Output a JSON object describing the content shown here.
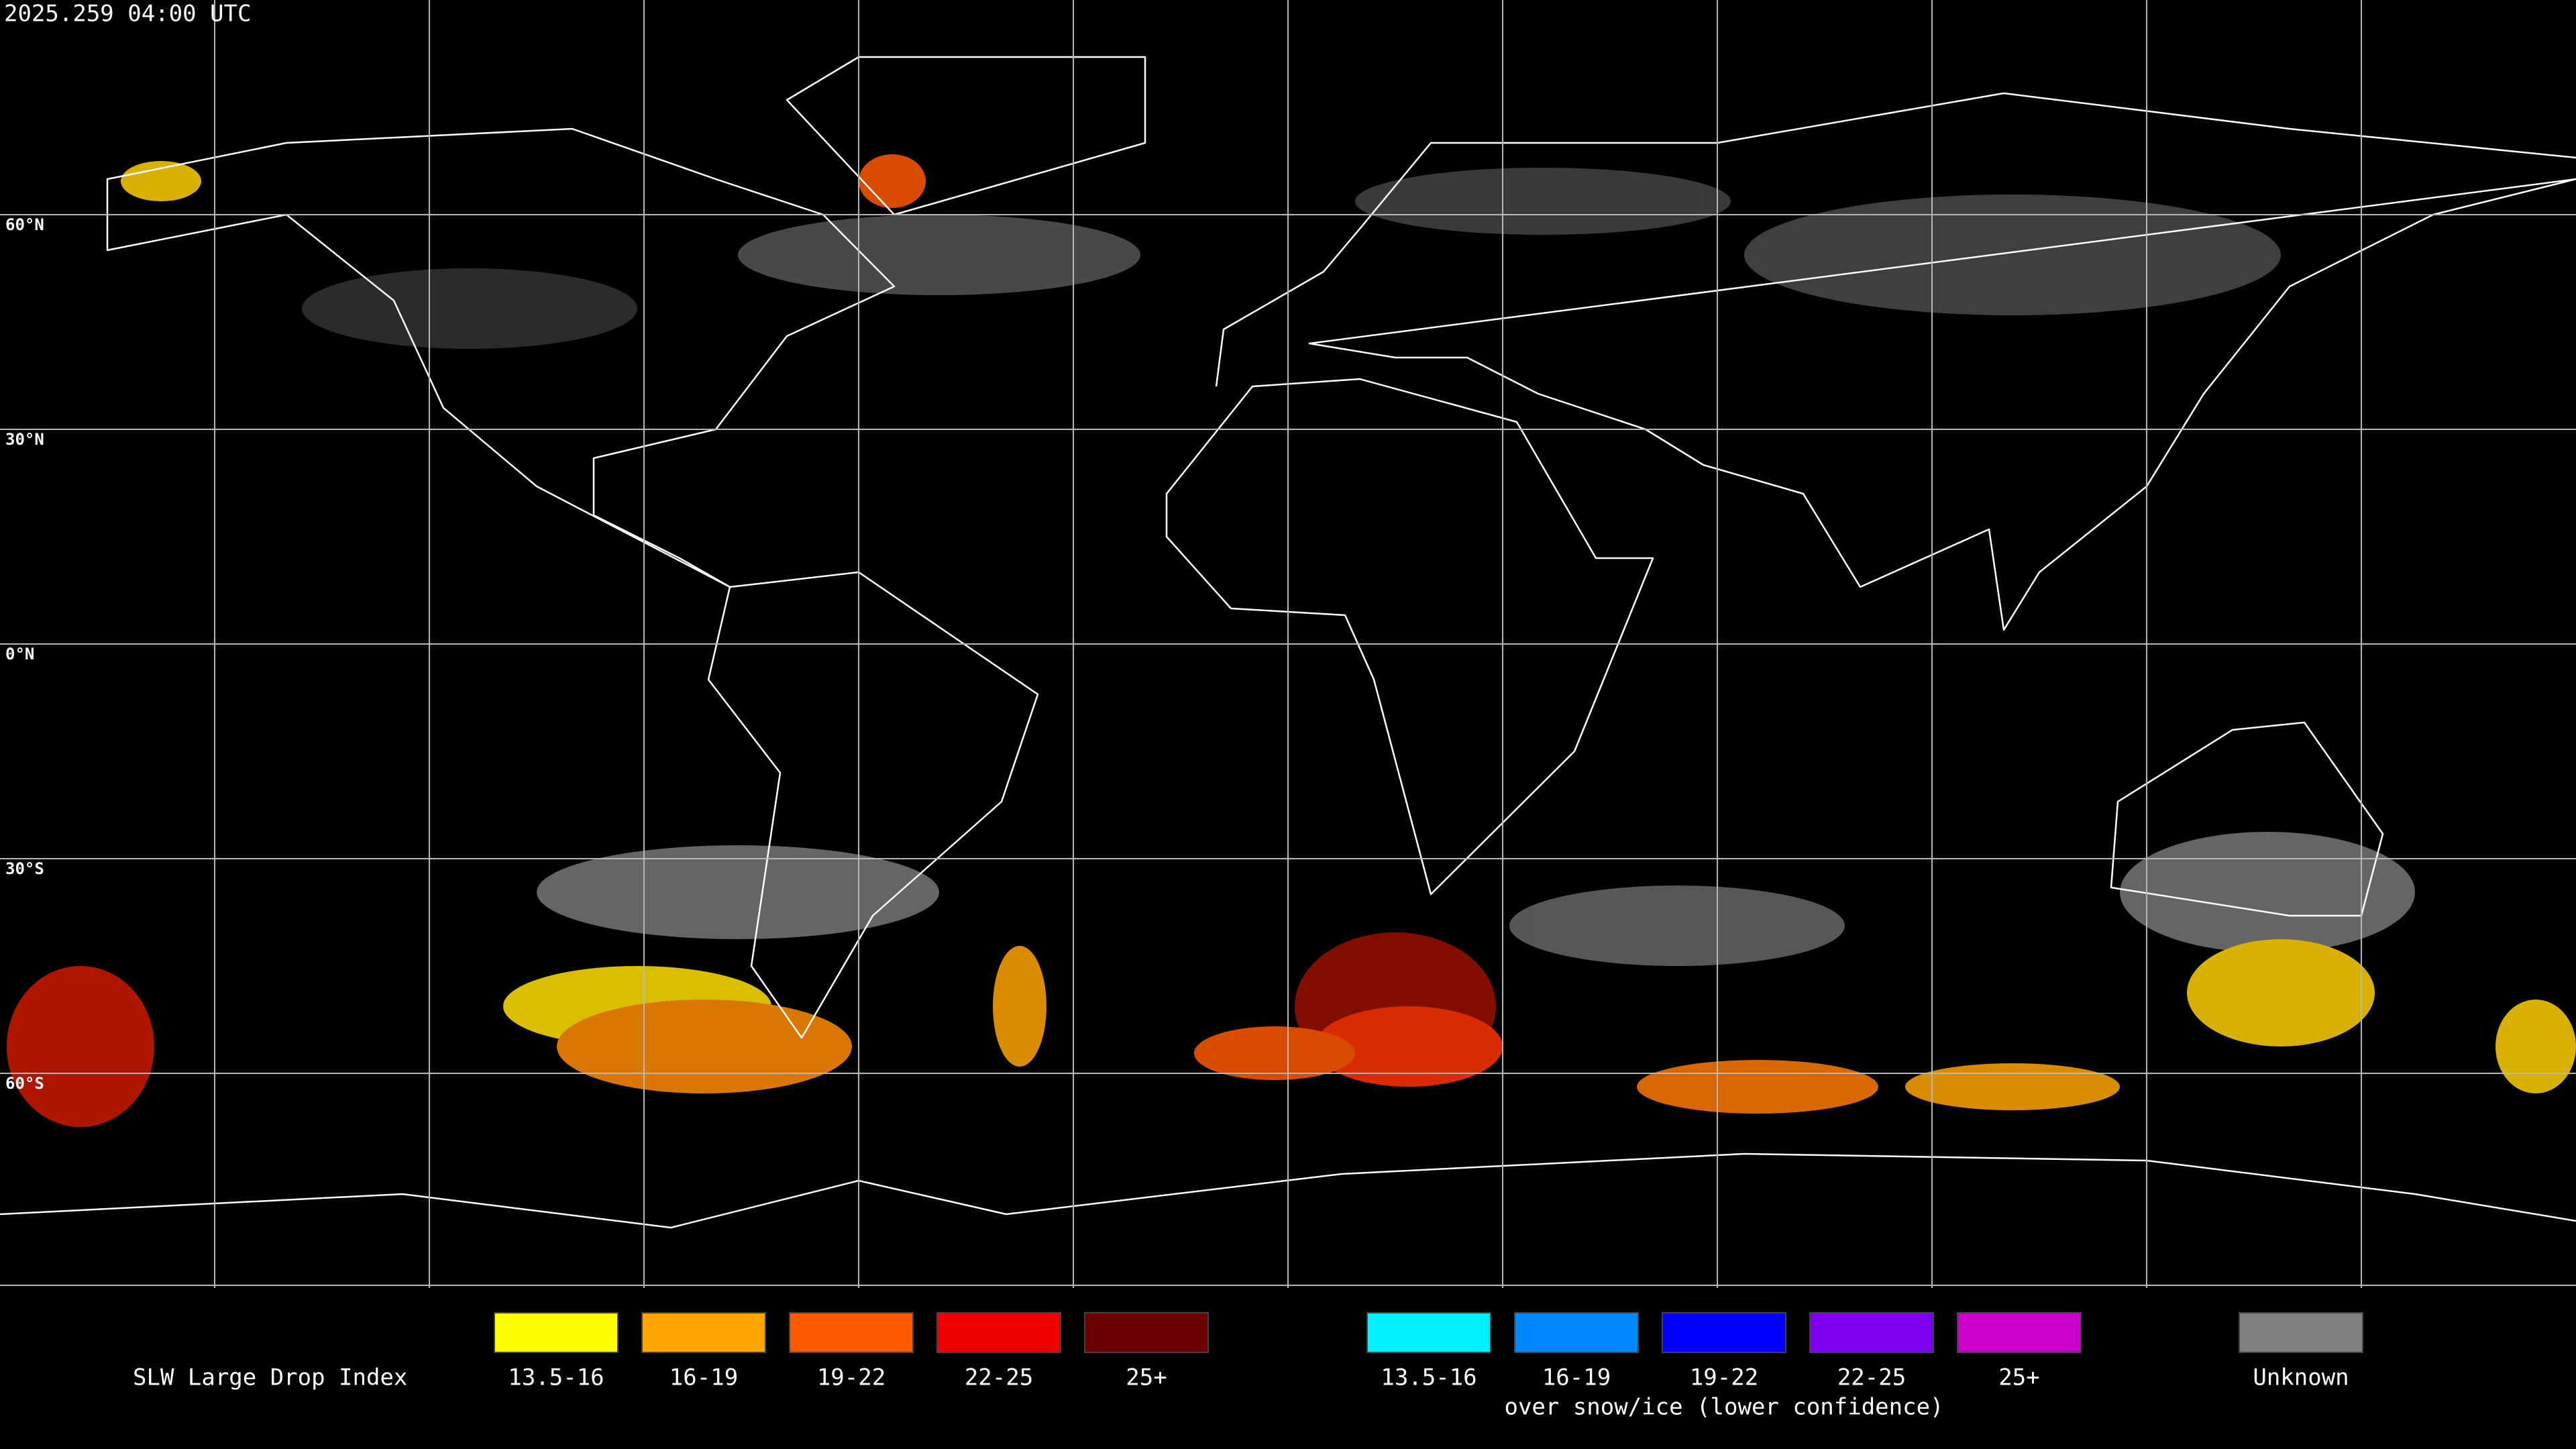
{
  "header": {
    "timestamp": "2025.259 04:00 UTC"
  },
  "map": {
    "latitude_labels": [
      "60°N",
      "30°N",
      "0°N",
      "30°S",
      "60°S"
    ]
  },
  "legend": {
    "title": "SLW Large Drop Index",
    "groups": [
      {
        "items": [
          {
            "label": "13.5-16",
            "color": "#ffff00"
          },
          {
            "label": "16-19",
            "color": "#ffa500"
          },
          {
            "label": "19-22",
            "color": "#ff5a00"
          },
          {
            "label": "22-25",
            "color": "#ee0000"
          },
          {
            "label": "25+",
            "color": "#6b0000"
          }
        ]
      },
      {
        "items": [
          {
            "label": "13.5-16",
            "color": "#00f0ff"
          },
          {
            "label": "16-19",
            "color": "#0088ff"
          },
          {
            "label": "19-22",
            "color": "#0000ff"
          },
          {
            "label": "22-25",
            "color": "#7f00ee"
          },
          {
            "label": "25+",
            "color": "#cc00cc"
          }
        ],
        "caption": "over snow/ice (lower confidence)"
      },
      {
        "items": [
          {
            "label": "Unknown",
            "color": "#808080"
          }
        ]
      }
    ]
  }
}
